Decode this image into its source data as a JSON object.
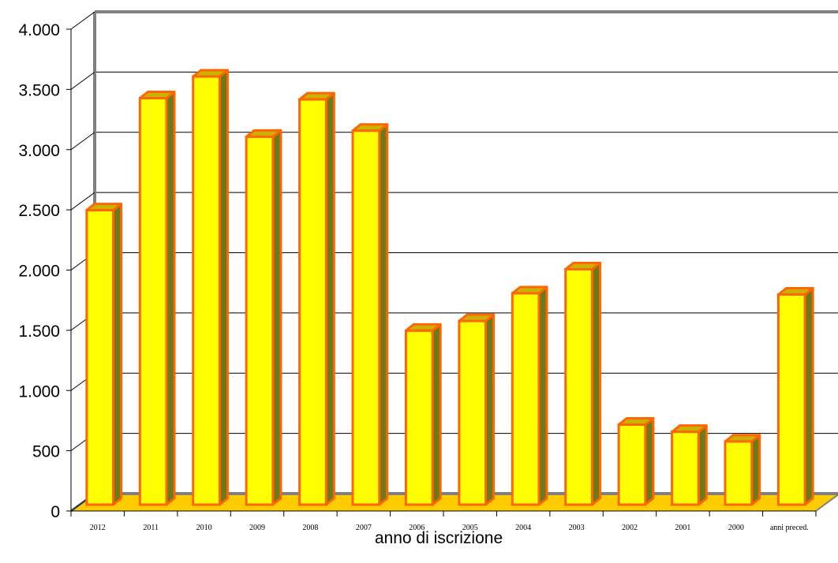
{
  "chart_data": {
    "type": "bar",
    "title": "",
    "xlabel": "anno di iscrizione",
    "ylabel": "",
    "ylim": [
      0,
      4000
    ],
    "y_ticks": [
      {
        "value": 0,
        "label": "0"
      },
      {
        "value": 500,
        "label": "500"
      },
      {
        "value": 1000,
        "label": "1.000"
      },
      {
        "value": 1500,
        "label": "1.500"
      },
      {
        "value": 2000,
        "label": "2.000"
      },
      {
        "value": 2500,
        "label": "2.500"
      },
      {
        "value": 3000,
        "label": "3.000"
      },
      {
        "value": 3500,
        "label": "3.500"
      },
      {
        "value": 4000,
        "label": "4.000"
      }
    ],
    "grid": true,
    "legend": "none",
    "style": "3d",
    "categories": [
      "2012",
      "2011",
      "2010",
      "2009",
      "2008",
      "2007",
      "2006",
      "2005",
      "2004",
      "2003",
      "2002",
      "2001",
      "2000",
      "anni preced."
    ],
    "values": [
      2510,
      3440,
      3620,
      3120,
      3430,
      3170,
      1510,
      1590,
      1820,
      2020,
      730,
      670,
      590,
      1810
    ],
    "colors": {
      "bar_face": "#ffff00",
      "bar_outline": "#ff6600",
      "bar_side": "#6b7a1a",
      "bar_top": "#c8b400",
      "floor": "#ffcc00",
      "wall": "#808080",
      "grid": "#000000"
    }
  }
}
